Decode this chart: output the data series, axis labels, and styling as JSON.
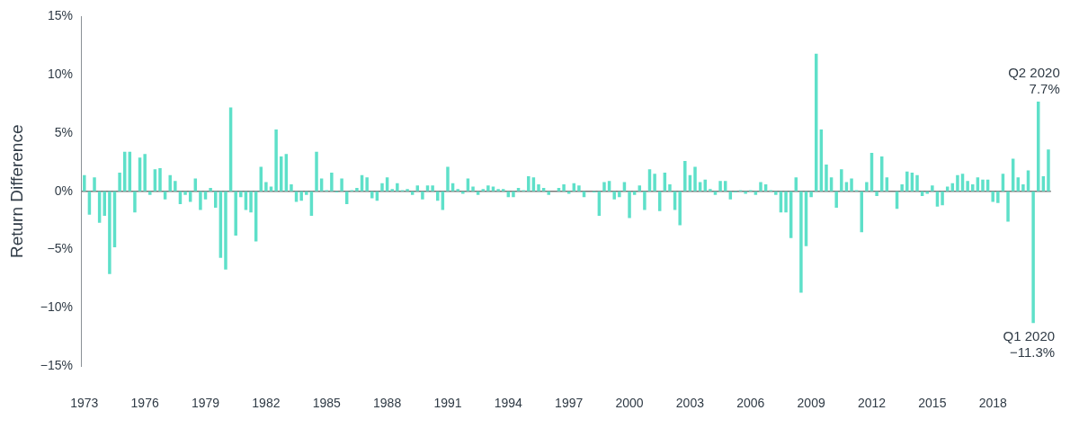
{
  "chart_data": {
    "type": "bar",
    "ylabel": "Return Difference",
    "categories": [
      "1973",
      null,
      null,
      null,
      null,
      null,
      null,
      null,
      null,
      null,
      null,
      null,
      "1976",
      null,
      null,
      null,
      null,
      null,
      null,
      null,
      null,
      null,
      null,
      null,
      "1979",
      null,
      null,
      null,
      null,
      null,
      null,
      null,
      null,
      null,
      null,
      null,
      "1982",
      null,
      null,
      null,
      null,
      null,
      null,
      null,
      null,
      null,
      null,
      null,
      "1985",
      null,
      null,
      null,
      null,
      null,
      null,
      null,
      null,
      null,
      null,
      null,
      "1988",
      null,
      null,
      null,
      null,
      null,
      null,
      null,
      null,
      null,
      null,
      null,
      "1991",
      null,
      null,
      null,
      null,
      null,
      null,
      null,
      null,
      null,
      null,
      null,
      "1994",
      null,
      null,
      null,
      null,
      null,
      null,
      null,
      null,
      null,
      null,
      null,
      "1997",
      null,
      null,
      null,
      null,
      null,
      null,
      null,
      null,
      null,
      null,
      null,
      "2000",
      null,
      null,
      null,
      null,
      null,
      null,
      null,
      null,
      null,
      null,
      null,
      "2003",
      null,
      null,
      null,
      null,
      null,
      null,
      null,
      null,
      null,
      null,
      null,
      "2006",
      null,
      null,
      null,
      null,
      null,
      null,
      null,
      null,
      null,
      null,
      null,
      "2009",
      null,
      null,
      null,
      null,
      null,
      null,
      null,
      null,
      null,
      null,
      null,
      "2012",
      null,
      null,
      null,
      null,
      null,
      null,
      null,
      null,
      null,
      null,
      null,
      "2015",
      null,
      null,
      null,
      null,
      null,
      null,
      null,
      null,
      null,
      null,
      null,
      "2018",
      null,
      null,
      null,
      null,
      null,
      null,
      null,
      null,
      null,
      null,
      null
    ],
    "values": [
      1.4,
      -2.0,
      1.2,
      -2.7,
      -2.1,
      -7.1,
      -4.8,
      1.6,
      3.4,
      3.4,
      -1.8,
      2.9,
      3.2,
      -0.3,
      1.9,
      2.0,
      -0.7,
      1.4,
      0.9,
      -1.1,
      -0.3,
      -0.9,
      1.1,
      -1.6,
      -0.7,
      0.3,
      -1.4,
      -5.7,
      -6.7,
      7.2,
      -3.8,
      -0.5,
      -1.6,
      -1.8,
      -4.3,
      2.1,
      0.8,
      0.4,
      5.3,
      3.0,
      3.2,
      0.6,
      -0.9,
      -0.8,
      -0.3,
      -2.1,
      3.4,
      1.1,
      0.1,
      1.6,
      -0.1,
      1.1,
      -1.1,
      0.1,
      0.3,
      1.4,
      1.2,
      -0.6,
      -0.8,
      0.7,
      1.2,
      0.2,
      0.7,
      0.1,
      0.2,
      -0.3,
      0.5,
      -0.7,
      0.5,
      0.5,
      -0.8,
      -1.6,
      2.1,
      0.7,
      0.2,
      -0.2,
      1.1,
      0.4,
      -0.3,
      0.2,
      0.5,
      0.4,
      0.2,
      0.2,
      -0.5,
      -0.5,
      0.3,
      0.1,
      1.3,
      1.2,
      0.6,
      0.3,
      -0.3,
      0.0,
      0.3,
      0.6,
      -0.2,
      0.7,
      0.5,
      -0.5,
      0.0,
      -0.1,
      -2.1,
      0.8,
      0.9,
      -0.7,
      -0.5,
      0.8,
      -2.3,
      -0.3,
      0.5,
      -1.6,
      1.9,
      1.5,
      -1.7,
      1.6,
      0.6,
      -1.6,
      -2.9,
      2.6,
      1.4,
      2.1,
      0.8,
      1.0,
      0.2,
      -0.3,
      0.9,
      0.9,
      -0.7,
      -0.1,
      0.1,
      -0.2,
      0.1,
      -0.3,
      0.8,
      0.6,
      0.1,
      -0.3,
      -1.8,
      -1.8,
      -4.0,
      1.2,
      -8.7,
      -4.7,
      -0.5,
      11.8,
      5.3,
      2.3,
      1.2,
      -1.4,
      1.9,
      0.8,
      1.1,
      0.1,
      -3.5,
      0.8,
      3.3,
      -0.4,
      3.0,
      1.2,
      0.0,
      -1.5,
      0.6,
      1.7,
      1.6,
      1.4,
      -0.4,
      -0.2,
      0.5,
      -1.3,
      -1.2,
      0.4,
      0.7,
      1.4,
      1.5,
      0.9,
      0.6,
      1.2,
      1.0,
      1.0,
      -0.9,
      -1.0,
      1.5,
      -2.6,
      2.8,
      1.2,
      0.6,
      1.8,
      -11.3,
      7.7,
      1.3,
      3.6
    ],
    "value_labels": [
      null,
      null,
      null,
      null,
      null,
      null,
      null,
      null,
      null,
      null,
      null,
      null,
      null,
      null,
      null,
      null,
      null,
      null,
      null,
      null,
      null,
      null,
      null,
      null,
      null,
      null,
      null,
      null,
      null,
      null,
      null,
      null,
      null,
      null,
      null,
      null,
      null,
      null,
      null,
      null,
      null,
      null,
      null,
      null,
      null,
      null,
      null,
      null,
      null,
      null,
      null,
      null,
      null,
      null,
      null,
      null,
      null,
      null,
      null,
      null,
      null,
      null,
      null,
      null,
      null,
      null,
      null,
      null,
      null,
      null,
      null,
      null,
      null,
      null,
      null,
      null,
      null,
      null,
      null,
      null,
      null,
      null,
      null,
      null,
      null,
      null,
      null,
      null,
      null,
      null,
      null,
      null,
      null,
      null,
      null,
      null,
      null,
      null,
      null,
      null,
      null,
      null,
      null,
      null,
      null,
      null,
      null,
      null,
      null,
      null,
      null,
      null,
      null,
      null,
      null,
      null,
      null,
      null,
      null,
      null,
      null,
      null,
      null,
      null,
      null,
      null,
      null,
      null,
      null,
      null,
      null,
      null,
      null,
      null,
      null,
      null,
      null,
      null,
      null,
      null,
      null,
      null,
      null,
      null,
      null,
      null,
      null,
      null,
      null,
      null,
      null,
      null,
      null,
      null,
      null,
      null,
      null,
      null,
      null,
      null,
      null,
      null,
      null,
      null,
      null,
      null,
      null,
      null,
      null,
      null,
      null,
      null,
      null,
      null,
      null,
      null,
      null,
      null,
      null,
      null,
      null,
      null,
      null,
      null,
      null,
      null,
      null,
      null,
      "Q1 2020\n−11.3%",
      "Q2 2020\n7.7%",
      null,
      null
    ],
    "color": "#5ee0c9",
    "ylim": [
      -15,
      15
    ],
    "yticks": [
      {
        "value": -15,
        "label": "−15%"
      },
      {
        "value": -10,
        "label": "−10%"
      },
      {
        "value": -5,
        "label": "−5%"
      },
      {
        "value": 0,
        "label": "0%"
      },
      {
        "value": 5,
        "label": "5%"
      },
      {
        "value": 10,
        "label": "10%"
      },
      {
        "value": 15,
        "label": "15%"
      }
    ],
    "ref_lines": [
      {
        "axis": "y",
        "value": 0,
        "color": "#777777"
      }
    ],
    "grid": false,
    "legend": false
  }
}
